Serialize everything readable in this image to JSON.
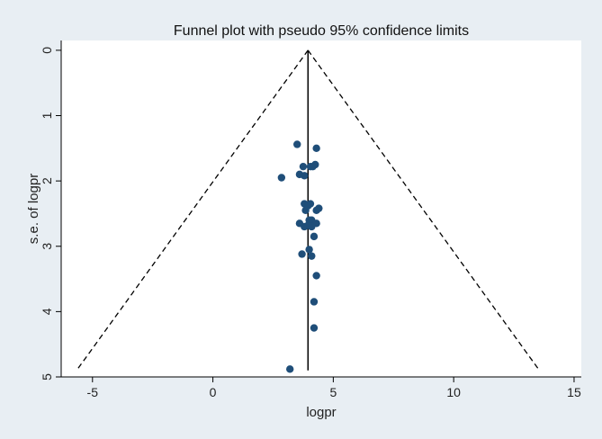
{
  "chart_data": {
    "type": "scatter",
    "title": "Funnel plot with pseudo 95% confidence limits",
    "xlabel": "logpr",
    "ylabel": "s.e. of logpr",
    "xlim": [
      -6.3,
      15.3
    ],
    "ylim": [
      5.0,
      -0.15
    ],
    "y_reversed": true,
    "x_ticks": [
      -5,
      0,
      5,
      10,
      15
    ],
    "y_ticks": [
      0,
      1,
      2,
      3,
      4,
      5
    ],
    "pooled_estimate": 3.95,
    "pooled_line_ylim": [
      0,
      4.9
    ],
    "confidence_limits": {
      "lower": [
        [
          3.95,
          0
        ],
        [
          -5.6,
          4.87
        ]
      ],
      "upper": [
        [
          3.95,
          0
        ],
        [
          13.5,
          4.87
        ]
      ]
    },
    "points": [
      {
        "x": 3.5,
        "y": 1.44
      },
      {
        "x": 4.3,
        "y": 1.5
      },
      {
        "x": 4.25,
        "y": 1.75
      },
      {
        "x": 4.05,
        "y": 1.78
      },
      {
        "x": 4.15,
        "y": 1.78
      },
      {
        "x": 3.75,
        "y": 1.78
      },
      {
        "x": 3.6,
        "y": 1.9
      },
      {
        "x": 3.8,
        "y": 1.92
      },
      {
        "x": 2.85,
        "y": 1.95
      },
      {
        "x": 3.8,
        "y": 2.35
      },
      {
        "x": 4.05,
        "y": 2.35
      },
      {
        "x": 3.95,
        "y": 2.38
      },
      {
        "x": 4.4,
        "y": 2.42
      },
      {
        "x": 4.3,
        "y": 2.45
      },
      {
        "x": 3.85,
        "y": 2.45
      },
      {
        "x": 4.1,
        "y": 2.6
      },
      {
        "x": 4.0,
        "y": 2.6
      },
      {
        "x": 3.6,
        "y": 2.65
      },
      {
        "x": 4.3,
        "y": 2.65
      },
      {
        "x": 3.8,
        "y": 2.7
      },
      {
        "x": 4.1,
        "y": 2.7
      },
      {
        "x": 3.95,
        "y": 2.68
      },
      {
        "x": 4.2,
        "y": 2.85
      },
      {
        "x": 4.0,
        "y": 3.05
      },
      {
        "x": 3.7,
        "y": 3.12
      },
      {
        "x": 4.1,
        "y": 3.15
      },
      {
        "x": 4.3,
        "y": 3.45
      },
      {
        "x": 4.2,
        "y": 3.85
      },
      {
        "x": 4.2,
        "y": 4.25
      },
      {
        "x": 3.2,
        "y": 4.88
      }
    ],
    "colors": {
      "background": "#e8eef3",
      "plot_area": "#ffffff",
      "point": "#1f4e79",
      "line": "#000000"
    }
  }
}
